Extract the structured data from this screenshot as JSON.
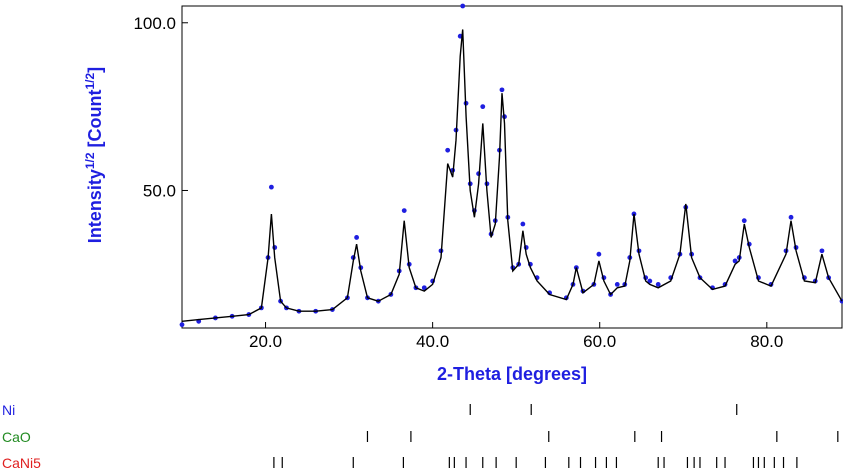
{
  "chart_data": {
    "type": "line",
    "title": "",
    "xlabel": "2-Theta [degrees]",
    "ylabel": {
      "prefix": "Intensity",
      "sup1": "1/2",
      "middle": " [Count",
      "sup2": "1/2",
      "suffix": "]"
    },
    "xlim": [
      10,
      89
    ],
    "ylim": [
      9,
      105
    ],
    "x_ticks": [
      {
        "value": 20,
        "label": "20.0"
      },
      {
        "value": 40,
        "label": "40.0"
      },
      {
        "value": 60,
        "label": "60.0"
      },
      {
        "value": 80,
        "label": "80.0"
      }
    ],
    "y_ticks": [
      {
        "value": 50,
        "label": "50.0"
      },
      {
        "value": 100,
        "label": "100.0"
      }
    ],
    "colors": {
      "observed": "#1f1fe0",
      "calculated": "#000000",
      "xlabel": "#1f1fe0",
      "ylabel": "#1f1fe0"
    },
    "series": [
      {
        "name": "",
        "role": "observed",
        "x": [
          10,
          12,
          14,
          16,
          18,
          19.5,
          20.3,
          20.7,
          21.1,
          21.8,
          22.5,
          24,
          26,
          28,
          29.8,
          30.5,
          30.9,
          31.4,
          32.2,
          33.5,
          35,
          36,
          36.6,
          37.2,
          38,
          39,
          40,
          41,
          41.8,
          42.4,
          42.8,
          43.3,
          43.6,
          44,
          44.5,
          45,
          45.5,
          46,
          46.5,
          47,
          47.5,
          48,
          48.3,
          48.6,
          49,
          49.6,
          50.3,
          50.8,
          51.2,
          51.7,
          52.5,
          54,
          56,
          56.8,
          57.2,
          58,
          59.3,
          59.9,
          60.5,
          61.3,
          62.1,
          63,
          63.6,
          64.1,
          64.7,
          65.5,
          66,
          67,
          68.5,
          69.6,
          70.3,
          71,
          72,
          73.5,
          75,
          76.2,
          76.7,
          77.3,
          77.9,
          79,
          80.5,
          82.3,
          82.9,
          83.5,
          84.5,
          85.8,
          86.6,
          87.4,
          89
        ],
        "y": [
          10,
          11,
          12,
          12.5,
          13,
          15,
          30,
          51,
          33,
          17,
          15,
          14,
          14,
          14.5,
          18,
          30,
          36,
          27,
          18,
          17,
          19,
          26,
          44,
          28,
          21,
          21,
          23,
          32,
          62,
          56,
          68,
          96,
          105,
          76,
          52,
          44,
          55,
          75,
          52,
          37,
          41,
          62,
          80,
          72,
          42,
          27,
          28,
          40,
          33,
          28,
          24,
          19.5,
          18,
          22,
          27,
          20,
          22,
          31,
          24,
          19,
          22,
          22,
          30,
          43,
          32,
          24,
          23,
          22,
          24,
          31,
          45,
          31,
          24,
          21,
          22,
          29,
          30,
          41,
          34,
          24,
          22,
          32,
          42,
          33,
          24,
          23,
          32,
          24,
          17
        ]
      },
      {
        "name": "",
        "role": "calculated",
        "x": [
          10,
          12,
          14,
          16,
          18,
          19.5,
          20.3,
          20.7,
          21.1,
          21.8,
          22.5,
          24,
          26,
          28,
          29.8,
          30.5,
          30.9,
          31.4,
          32.2,
          33.5,
          35,
          36,
          36.6,
          37.2,
          38,
          39,
          40,
          41,
          41.8,
          42.4,
          42.8,
          43.3,
          43.6,
          44,
          44.5,
          45,
          45.5,
          46,
          46.5,
          47,
          47.5,
          48,
          48.3,
          48.6,
          49,
          49.6,
          50.3,
          50.8,
          51.2,
          51.7,
          52.5,
          54,
          56,
          56.8,
          57.2,
          58,
          59.3,
          59.9,
          60.5,
          61.3,
          62.1,
          63,
          63.6,
          64.1,
          64.7,
          65.5,
          66,
          67,
          68.5,
          69.6,
          70.3,
          71,
          72,
          73.5,
          75,
          76.2,
          76.7,
          77.3,
          77.9,
          79,
          80.5,
          82.3,
          82.9,
          83.5,
          84.5,
          85.8,
          86.6,
          87.4,
          89
        ],
        "y": [
          11,
          11.5,
          12,
          12.5,
          13,
          15,
          30,
          43,
          30,
          17,
          15,
          14,
          14,
          14.5,
          18,
          29,
          34,
          26,
          18,
          17,
          19,
          25,
          41,
          27,
          21,
          20,
          22,
          30,
          58,
          54,
          65,
          90,
          98,
          72,
          50,
          42,
          52,
          70,
          50,
          36,
          40,
          60,
          79,
          70,
          41,
          26,
          28,
          38,
          31,
          27,
          23,
          19,
          17.5,
          22,
          27,
          19.5,
          22,
          29,
          23,
          19,
          21,
          21.5,
          29,
          43,
          31,
          23,
          22,
          21,
          23,
          31,
          46,
          30,
          24,
          20.5,
          21.5,
          28,
          29,
          40,
          33,
          23,
          21.5,
          31,
          41,
          32,
          23,
          22.5,
          31,
          24,
          17
        ]
      }
    ],
    "phases": [
      {
        "name": "Ni",
        "color": "#1f1fe0",
        "positions": [
          44.5,
          51.8,
          76.4
        ]
      },
      {
        "name": "CaO",
        "color": "#228b22",
        "positions": [
          32.2,
          37.4,
          53.9,
          64.2,
          67.4,
          81.2,
          88.5
        ]
      },
      {
        "name": "CaNi5",
        "color": "#e02020",
        "positions": [
          21.0,
          22.0,
          30.5,
          36.5,
          42.0,
          42.6,
          44.0,
          46.0,
          47.6,
          50.0,
          53.5,
          56.3,
          57.7,
          59.5,
          60.8,
          62.0,
          67.0,
          67.7,
          70.5,
          71.3,
          72.0,
          74.0,
          75.0,
          78.4,
          79.0,
          79.7,
          80.9,
          82.0,
          83.6
        ]
      }
    ]
  }
}
